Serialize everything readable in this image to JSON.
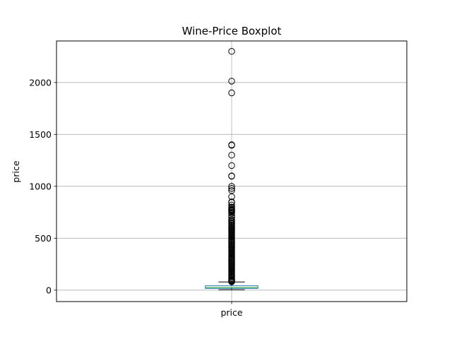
{
  "chart_data": {
    "type": "boxplot",
    "title": "Wine-Price Boxplot",
    "xlabel": "",
    "ylabel": "price",
    "categories": [
      "price"
    ],
    "ylim": [
      -110,
      2400
    ],
    "yticks": [
      0,
      500,
      1000,
      1500,
      2000
    ],
    "grid": true,
    "colors": {
      "box": "#1f77b4",
      "median": "#2ca02c",
      "whisker": "#000000",
      "flier": "#000000",
      "grid": "#b0b0b0"
    },
    "boxes": [
      {
        "label": "price",
        "whislo": 4,
        "q1": 17,
        "med": 25,
        "q3": 42,
        "whishi": 79,
        "fliers": [
          2300,
          2013,
          1900,
          1400,
          1395,
          1300,
          1200,
          1100,
          1098,
          1000,
          980,
          960,
          900,
          850,
          845,
          820,
          800,
          790,
          780,
          775,
          770,
          765,
          760,
          750,
          740,
          720,
          700,
          680,
          670,
          660,
          650,
          640,
          630,
          620,
          610,
          600,
          590,
          580,
          570,
          560,
          550,
          540,
          530,
          520,
          510,
          500,
          490,
          480,
          470,
          460,
          450,
          440,
          430,
          420,
          410,
          400,
          390,
          380,
          370,
          360,
          350,
          340,
          330,
          320,
          310,
          300,
          290,
          280,
          270,
          260,
          250,
          240,
          230,
          220,
          210,
          200,
          190,
          180,
          170,
          160,
          150,
          140,
          130,
          120,
          110,
          100,
          95,
          90,
          85,
          80
        ]
      }
    ]
  }
}
